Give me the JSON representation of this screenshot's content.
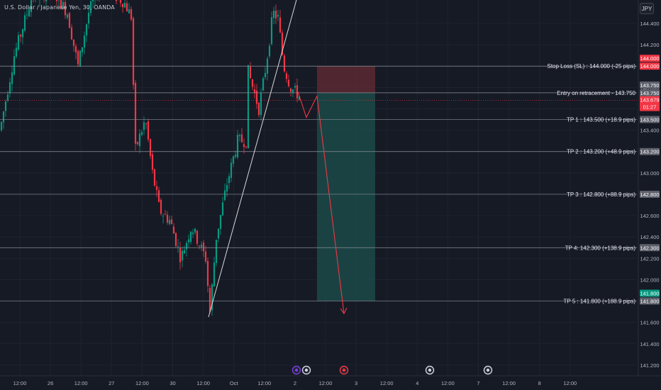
{
  "header": {
    "symbol": "U.S. Dollar / Japanese Yen, 30, OANDA",
    "currency_button": "JPY"
  },
  "chart_data": {
    "type": "candlestick",
    "title": "U.S. Dollar / Japanese Yen, 30, OANDA",
    "ylim": [
      141.15,
      144.55
    ],
    "y_ticks": [
      "144.400",
      "144.200",
      "144.000",
      "143.800",
      "143.600",
      "143.400",
      "143.200",
      "143.000",
      "142.800",
      "142.600",
      "142.400",
      "142.200",
      "142.000",
      "141.800",
      "141.600",
      "141.400",
      "141.200"
    ],
    "x_ticks": [
      "12:00",
      "26",
      "12:00",
      "27",
      "12:00",
      "30",
      "12:00",
      "Oct",
      "12:00",
      "2",
      "12:00",
      "3",
      "12:00",
      "4",
      "12:00",
      "7",
      "12:00",
      "8",
      "12:00"
    ],
    "levels": [
      {
        "label": "Stop Loss (SL) : 144.000 (-25 pips)",
        "price": 144.0,
        "price_label": "144.000",
        "role": "sl"
      },
      {
        "label": "Entry on retracement - 143.750",
        "price": 143.75,
        "price_label": "143.750",
        "role": "entry"
      },
      {
        "label": "TP 1 : 143.500 (+18.9 pips)",
        "price": 143.5,
        "price_label": "143.500",
        "role": "tp"
      },
      {
        "label": "TP 2 : 143.200 (+48.9 pips)",
        "price": 143.2,
        "price_label": "143.200",
        "role": "tp"
      },
      {
        "label": "TP 3 : 142.800 (+88.9 pips)",
        "price": 142.8,
        "price_label": "142.800",
        "role": "tp"
      },
      {
        "label": "TP 4: 142.300 (+138.9 pips)",
        "price": 142.3,
        "price_label": "142.300",
        "role": "tp"
      },
      {
        "label": "TP 5 : 141.800 (+188.9 pips)",
        "price": 141.8,
        "price_label": "141.800",
        "role": "tp_final"
      }
    ],
    "current_price": {
      "price": 143.679,
      "label": "143.679",
      "timer": "01:27"
    },
    "extra_price_tags": [
      {
        "price": 144.0,
        "label": "144.000",
        "color": "#f23645"
      },
      {
        "price": 143.75,
        "label": "143.750",
        "color": "#5d606b"
      },
      {
        "price": 141.8,
        "label": "141.800",
        "color": "#089981"
      }
    ],
    "trend_line": {
      "from_price": 141.65,
      "to_price": 144.55
    },
    "projection_path": [
      143.5,
      143.72,
      141.65
    ],
    "position": {
      "type": "short",
      "entry": 143.75,
      "stop": 144.0,
      "target": 141.8
    },
    "colors": {
      "up": "#089981",
      "down": "#f23645",
      "stop_zone": "#5a2a33",
      "target_zone": "#1b4a48",
      "projection": "#f23645",
      "trendline": "#d9d9d9"
    }
  }
}
